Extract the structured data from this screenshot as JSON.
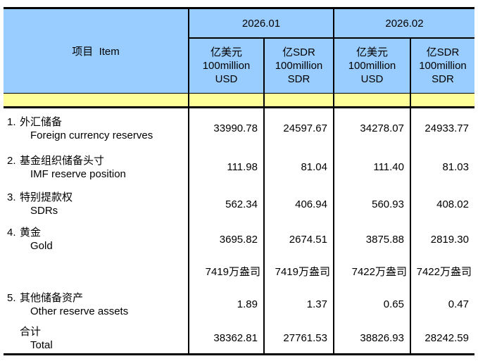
{
  "colors": {
    "header_blue": "#99CCFF",
    "band_yellow": "#FFFF99",
    "border_black": "#000000",
    "page_background": "#FFFFFF"
  },
  "table": {
    "item_header": "项目  Item",
    "periods": [
      {
        "label": "2026.01"
      },
      {
        "label": "2026.02"
      }
    ],
    "unit_headers": [
      {
        "label": "亿美元\n100million\nUSD"
      },
      {
        "label": "亿SDR\n100million\nSDR"
      },
      {
        "label": "亿美元\n100million\nUSD"
      },
      {
        "label": "亿SDR\n100million\nSDR"
      }
    ],
    "rows": [
      {
        "no": "1.",
        "zh": "外汇储备",
        "en": "Foreign currency reserves",
        "values": [
          "33990.78",
          "24597.67",
          "34278.07",
          "24933.77"
        ]
      },
      {
        "no": "2.",
        "zh": "基金组织储备头寸",
        "en": "IMF reserve position",
        "values": [
          "111.98",
          "81.04",
          "111.40",
          "81.03"
        ]
      },
      {
        "no": "3.",
        "zh": "特别提款权",
        "en": "SDRs",
        "values": [
          "562.34",
          "406.94",
          "560.93",
          "408.02"
        ]
      },
      {
        "no": "4.",
        "zh": "黄金",
        "en": "Gold",
        "values": [
          "3695.82",
          "2674.51",
          "3875.88",
          "2819.30"
        ]
      },
      {
        "no": "",
        "zh": "",
        "en": "",
        "values": [
          "7419万盎司",
          "7419万盎司",
          "7422万盎司",
          "7422万盎司"
        ]
      },
      {
        "no": "5.",
        "zh": "其他储备资产",
        "en": "Other reserve assets",
        "values": [
          "1.89",
          "1.37",
          "0.65",
          "0.47"
        ]
      },
      {
        "no": "",
        "zh": "合计",
        "en": "Total",
        "values": [
          "38362.81",
          "27761.53",
          "38826.93",
          "28242.59"
        ]
      }
    ]
  }
}
